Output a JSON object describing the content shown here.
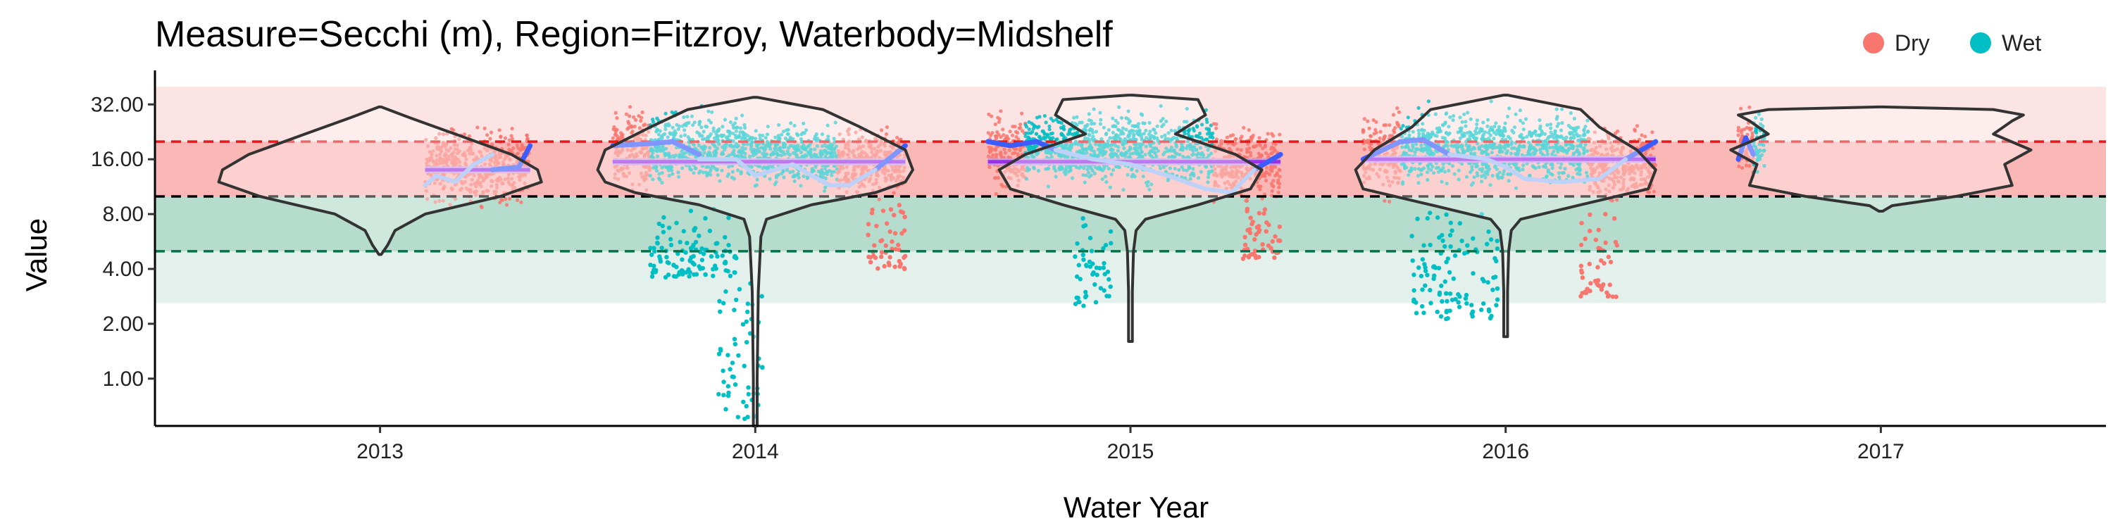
{
  "chart_data": {
    "type": "scatter",
    "title": "Measure=Secchi (m), Region=Fitzroy, Waterbody=Midshelf",
    "xlabel": "Water Year",
    "ylabel": "Value",
    "y_scale": "log2",
    "ylim": [
      0.55,
      45
    ],
    "xlim": [
      2012.4,
      2017.6
    ],
    "x_ticks": [
      2013,
      2014,
      2015,
      2016,
      2017
    ],
    "x_tick_labels": [
      "2013",
      "2014",
      "2015",
      "2016",
      "2017"
    ],
    "y_ticks": [
      1,
      2,
      4,
      8,
      16,
      32
    ],
    "y_tick_labels": [
      "1.00",
      "2.00",
      "4.00",
      "8.00",
      "16.00",
      "32.00"
    ],
    "grid": false,
    "legend_position": "top-right",
    "series": [
      {
        "name": "Dry",
        "color": "#F8766D"
      },
      {
        "name": "Wet",
        "color": "#00BFC4"
      }
    ],
    "background_bands": [
      {
        "ymin": 10,
        "ymax": 40,
        "color": "#fde4e4"
      },
      {
        "ymin": 10,
        "ymax": 20,
        "color": "#f9b7b5"
      },
      {
        "ymin": 5,
        "ymax": 10,
        "color": "#b6dccd"
      },
      {
        "ymin": 2.6,
        "ymax": 5,
        "color": "#e3f0ec"
      }
    ],
    "reference_lines": [
      {
        "y": 20,
        "color": "#e41a1c"
      },
      {
        "y": 10,
        "color": "#000000"
      },
      {
        "y": 5,
        "color": "#00734a"
      }
    ],
    "point_clusters": [
      {
        "series": "Dry",
        "x0": 2013.12,
        "x1": 2013.4,
        "ylo": 8,
        "yhi": 27
      },
      {
        "series": "Dry",
        "x0": 2013.62,
        "x1": 2013.72,
        "ylo": 9,
        "yhi": 34
      },
      {
        "series": "Wet",
        "x0": 2013.72,
        "x1": 2013.98,
        "ylo": 10,
        "yhi": 34
      },
      {
        "series": "Wet",
        "x0": 2013.98,
        "x1": 2014.22,
        "ylo": 10,
        "yhi": 28
      },
      {
        "series": "Dry",
        "x0": 2014.22,
        "x1": 2014.4,
        "ylo": 9,
        "yhi": 27
      },
      {
        "series": "Dry",
        "x0": 2014.62,
        "x1": 2014.72,
        "ylo": 9,
        "yhi": 32
      },
      {
        "series": "Wet",
        "x0": 2014.72,
        "x1": 2015.22,
        "ylo": 10,
        "yhi": 34
      },
      {
        "series": "Dry",
        "x0": 2015.22,
        "x1": 2015.4,
        "ylo": 8.5,
        "yhi": 27
      },
      {
        "series": "Dry",
        "x0": 2015.62,
        "x1": 2015.72,
        "ylo": 9,
        "yhi": 33
      },
      {
        "series": "Wet",
        "x0": 2015.72,
        "x1": 2016.22,
        "ylo": 10,
        "yhi": 34
      },
      {
        "series": "Dry",
        "x0": 2016.22,
        "x1": 2016.4,
        "ylo": 8.5,
        "yhi": 28
      },
      {
        "series": "Dry",
        "x0": 2016.62,
        "x1": 2016.66,
        "ylo": 10,
        "yhi": 33
      },
      {
        "series": "Wet",
        "x0": 2016.66,
        "x1": 2016.69,
        "ylo": 12,
        "yhi": 32
      }
    ],
    "outlier_ranges": [
      {
        "series": "Wet",
        "x0": 2013.72,
        "x1": 2013.95,
        "ylo": 3.6,
        "yhi": 9
      },
      {
        "series": "Wet",
        "x0": 2013.9,
        "x1": 2014.02,
        "ylo": 0.6,
        "yhi": 5
      },
      {
        "series": "Dry",
        "x0": 2014.3,
        "x1": 2014.4,
        "ylo": 4,
        "yhi": 9
      },
      {
        "series": "Wet",
        "x0": 2014.85,
        "x1": 2014.95,
        "ylo": 2.5,
        "yhi": 8
      },
      {
        "series": "Dry",
        "x0": 2015.3,
        "x1": 2015.4,
        "ylo": 4.5,
        "yhi": 9
      },
      {
        "series": "Wet",
        "x0": 2015.75,
        "x1": 2015.98,
        "ylo": 2.1,
        "yhi": 9
      },
      {
        "series": "Dry",
        "x0": 2016.2,
        "x1": 2016.3,
        "ylo": 2.8,
        "yhi": 9
      }
    ],
    "medians": [
      {
        "x0": 2013.12,
        "x1": 2013.4,
        "y": 14
      },
      {
        "x0": 2013.62,
        "x1": 2014.4,
        "y": 15.5
      },
      {
        "x0": 2014.62,
        "x1": 2015.4,
        "y": 15.5
      },
      {
        "x0": 2015.62,
        "x1": 2016.4,
        "y": 16
      }
    ],
    "smooth_lines": [
      {
        "color": "#3d5cff",
        "width": 7,
        "x": [
          2013.3,
          2013.37,
          2013.4
        ],
        "y": [
          14,
          14.5,
          19
        ]
      },
      {
        "color": "#3d5cff",
        "width": 7,
        "x": [
          2013.62,
          2013.72,
          2013.78,
          2013.85
        ],
        "y": [
          19,
          19.5,
          20,
          17
        ]
      },
      {
        "color": "#3d5cff",
        "width": 7,
        "x": [
          2014.32,
          2014.4
        ],
        "y": [
          14,
          19
        ]
      },
      {
        "color": "#3d5cff",
        "width": 7,
        "x": [
          2014.62,
          2014.68,
          2014.75,
          2014.8
        ],
        "y": [
          20,
          19,
          20,
          18
        ]
      },
      {
        "color": "#3d5cff",
        "width": 7,
        "x": [
          2015.33,
          2015.4
        ],
        "y": [
          14,
          17
        ]
      },
      {
        "color": "#3d5cff",
        "width": 7,
        "x": [
          2015.62,
          2015.72,
          2015.78,
          2015.85
        ],
        "y": [
          16,
          20,
          20.5,
          17
        ]
      },
      {
        "color": "#3d5cff",
        "width": 7,
        "x": [
          2016.32,
          2016.4
        ],
        "y": [
          16,
          20
        ]
      },
      {
        "color": "#3d5cff",
        "width": 7,
        "x": [
          2016.62,
          2016.64,
          2016.66
        ],
        "y": [
          16,
          21,
          17
        ]
      },
      {
        "color": "#9bb8f5",
        "width": 6,
        "x": [
          2013.12,
          2013.15,
          2013.2,
          2013.25,
          2013.3
        ],
        "y": [
          11.5,
          13,
          12,
          15,
          17
        ]
      },
      {
        "color": "#9bb8f5",
        "width": 6,
        "x": [
          2013.85,
          2013.95,
          2014.0,
          2014.1,
          2014.15,
          2014.2,
          2014.25,
          2014.32
        ],
        "y": [
          16,
          16,
          13,
          15,
          13,
          11.5,
          11.5,
          14
        ]
      },
      {
        "color": "#9bb8f5",
        "width": 6,
        "x": [
          2014.8,
          2014.9,
          2015.0,
          2015.1,
          2015.2,
          2015.27,
          2015.33
        ],
        "y": [
          18,
          16,
          15,
          13,
          11,
          10.5,
          14
        ]
      },
      {
        "color": "#9bb8f5",
        "width": 6,
        "x": [
          2015.85,
          2015.95,
          2016.0,
          2016.05,
          2016.15,
          2016.25,
          2016.32
        ],
        "y": [
          17,
          16,
          14.5,
          12.5,
          12,
          12.5,
          16
        ]
      }
    ],
    "violins": [
      {
        "x": 2013,
        "ymin": 4.8,
        "ymax": 31,
        "profile": [
          [
            4.8,
            0.003
          ],
          [
            5.4,
            0.02
          ],
          [
            6.5,
            0.04
          ],
          [
            8,
            0.12
          ],
          [
            10,
            0.32
          ],
          [
            12,
            0.43
          ],
          [
            14,
            0.42
          ],
          [
            17,
            0.35
          ],
          [
            22,
            0.2
          ],
          [
            27,
            0.08
          ],
          [
            31,
            0.003
          ]
        ]
      },
      {
        "x": 2014,
        "ymin": 0.55,
        "ymax": 35,
        "profile": [
          [
            0.55,
            0.005
          ],
          [
            1,
            0.005
          ],
          [
            3,
            0.008
          ],
          [
            6,
            0.015
          ],
          [
            7.5,
            0.03
          ],
          [
            9,
            0.15
          ],
          [
            10.5,
            0.32
          ],
          [
            12,
            0.4
          ],
          [
            14,
            0.42
          ],
          [
            18,
            0.4
          ],
          [
            24,
            0.28
          ],
          [
            30,
            0.18
          ],
          [
            35,
            0.005
          ]
        ]
      },
      {
        "x": 2015,
        "ymin": 1.6,
        "ymax": 36,
        "profile": [
          [
            1.6,
            0.005
          ],
          [
            3,
            0.005
          ],
          [
            5,
            0.008
          ],
          [
            6.5,
            0.015
          ],
          [
            7.5,
            0.04
          ],
          [
            9,
            0.18
          ],
          [
            11,
            0.32
          ],
          [
            14,
            0.35
          ],
          [
            17,
            0.28
          ],
          [
            22,
            0.12
          ],
          [
            28,
            0.2
          ],
          [
            34,
            0.18
          ],
          [
            36,
            0.005
          ]
        ]
      },
      {
        "x": 2016,
        "ymin": 1.7,
        "ymax": 36,
        "profile": [
          [
            1.7,
            0.005
          ],
          [
            3,
            0.005
          ],
          [
            5,
            0.008
          ],
          [
            6.5,
            0.015
          ],
          [
            7.5,
            0.04
          ],
          [
            9,
            0.2
          ],
          [
            11,
            0.38
          ],
          [
            14,
            0.4
          ],
          [
            18,
            0.35
          ],
          [
            24,
            0.25
          ],
          [
            30,
            0.2
          ],
          [
            36,
            0.005
          ]
        ]
      },
      {
        "x": 2017,
        "ymin": 8.3,
        "ymax": 31,
        "profile": [
          [
            8.3,
            0.005
          ],
          [
            8.9,
            0.03
          ],
          [
            10,
            0.2
          ],
          [
            11.5,
            0.35
          ],
          [
            15,
            0.33
          ],
          [
            18,
            0.4
          ],
          [
            22,
            0.3
          ],
          [
            26,
            0.35
          ],
          [
            28,
            0.38
          ],
          [
            30,
            0.3
          ],
          [
            31,
            0.005
          ]
        ]
      }
    ]
  }
}
